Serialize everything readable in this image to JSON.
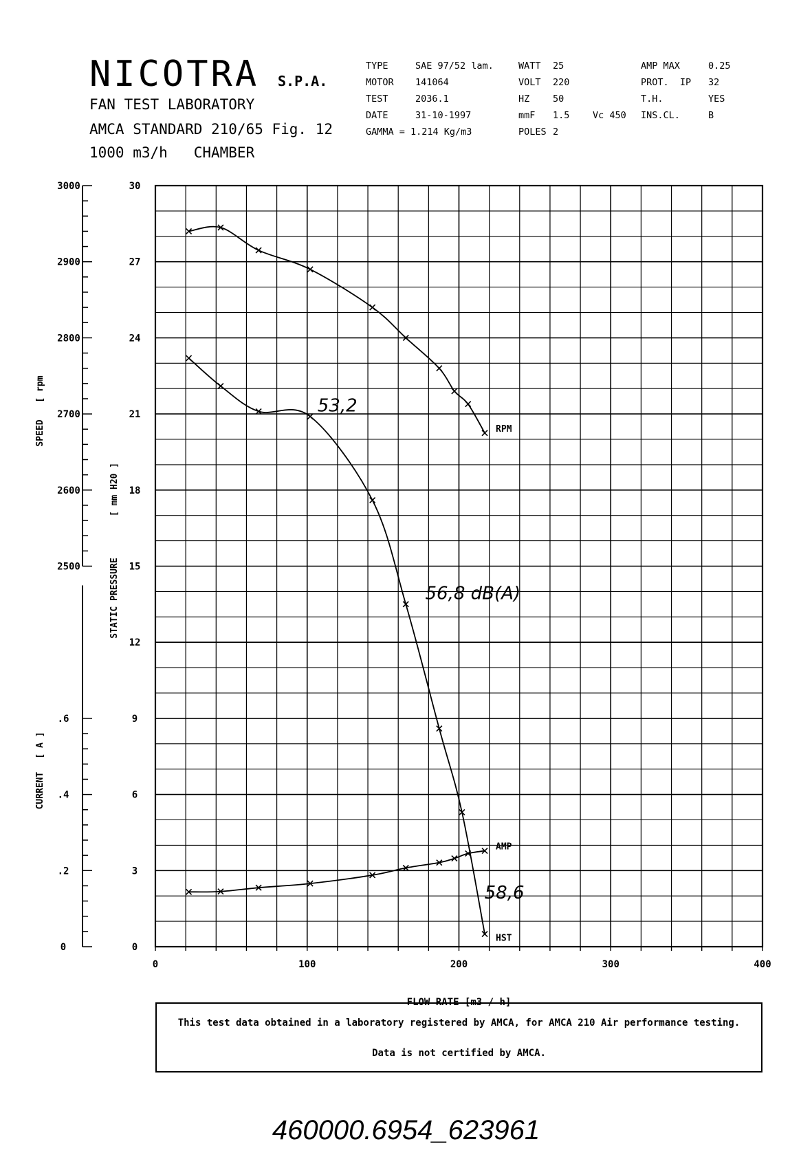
{
  "header": {
    "company": "NICOTRA",
    "company_suffix": "S.P.A.",
    "lab": "FAN TEST LABORATORY",
    "standard": "AMCA STANDARD 210/65 Fig. 12",
    "chamber": "1000 m3/h   CHAMBER"
  },
  "specs": {
    "col1": [
      {
        "label": "TYPE",
        "value": "SAE 97/52 lam."
      },
      {
        "label": "MOTOR",
        "value": "141064"
      },
      {
        "label": "TEST",
        "value": "2036.1"
      },
      {
        "label": "DATE",
        "value": "31-10-1997"
      },
      {
        "label": "GAMMA = 1.214 Kg/m3",
        "value": ""
      }
    ],
    "col2": [
      {
        "label": "WATT",
        "value": "25"
      },
      {
        "label": "VOLT",
        "value": "220"
      },
      {
        "label": "HZ",
        "value": "50"
      },
      {
        "label": "mmF",
        "value": "1.5"
      },
      {
        "label": "POLES",
        "value": "2"
      }
    ],
    "vc": "Vc 450",
    "col3": [
      {
        "label": "AMP MAX",
        "value": "0.25"
      },
      {
        "label": "PROT.  IP",
        "value": "32"
      },
      {
        "label": "T.H.",
        "value": "YES"
      },
      {
        "label": "INS.CL.",
        "value": "B"
      }
    ]
  },
  "chart_data": {
    "type": "line",
    "title": "",
    "xlabel": "FLOW RATE  [m3 / h]",
    "xlim": [
      0,
      400
    ],
    "x_ticks": [
      "0",
      "100",
      "200",
      "300",
      "400"
    ],
    "pressure_axis": {
      "label_main": "STATIC PRESSURE",
      "label_unit": "[ mm H20 ]",
      "ylim": [
        0,
        30
      ],
      "ticks": [
        "0",
        "3",
        "6",
        "9",
        "12",
        "15",
        "18",
        "21",
        "24",
        "27",
        "30"
      ]
    },
    "speed_axis": {
      "label_main": "SPEED",
      "label_unit": "[ rpm",
      "ylim": [
        2500,
        3000
      ],
      "ticks": [
        "2500",
        "2600",
        "2700",
        "2800",
        "2900",
        "3000"
      ]
    },
    "current_axis": {
      "label_main": "CURRENT",
      "label_unit": "[ A ]",
      "ylim": [
        0,
        0.6
      ],
      "ticks": [
        "0",
        ".2",
        ".4",
        ".6"
      ]
    },
    "grid": true,
    "series": [
      {
        "name": "RPM",
        "axis": "speed",
        "x": [
          22,
          43,
          68,
          102,
          143,
          165,
          187,
          197,
          206,
          217
        ],
        "y": [
          2940,
          2945,
          2915,
          2890,
          2840,
          2800,
          2760,
          2730,
          2713,
          2675
        ]
      },
      {
        "name": "HST",
        "axis": "pressure",
        "x": [
          22,
          43,
          68,
          102,
          143,
          165,
          187,
          202,
          217
        ],
        "y": [
          23.2,
          22.1,
          21.1,
          20.9,
          17.6,
          13.5,
          8.6,
          5.3,
          0.5
        ]
      },
      {
        "name": "AMP",
        "axis": "current",
        "x": [
          22,
          43,
          68,
          102,
          143,
          165,
          187,
          197,
          206,
          217
        ],
        "y": [
          0.144,
          0.145,
          0.155,
          0.166,
          0.188,
          0.207,
          0.221,
          0.232,
          0.245,
          0.252
        ]
      }
    ],
    "annotations": [
      {
        "text": "53,2",
        "x": 105,
        "y": 21.1
      },
      {
        "text": "56,8 dB(A)",
        "x": 176,
        "y": 13.7
      },
      {
        "text": "58,6",
        "x": 215,
        "y": 1.9
      }
    ]
  },
  "footer": {
    "line1": "This test data obtained in a laboratory registered by AMCA, for AMCA 210 Air performance testing.",
    "line2": "Data is not certified by AMCA."
  },
  "doc_id": "460000.6954_623961"
}
